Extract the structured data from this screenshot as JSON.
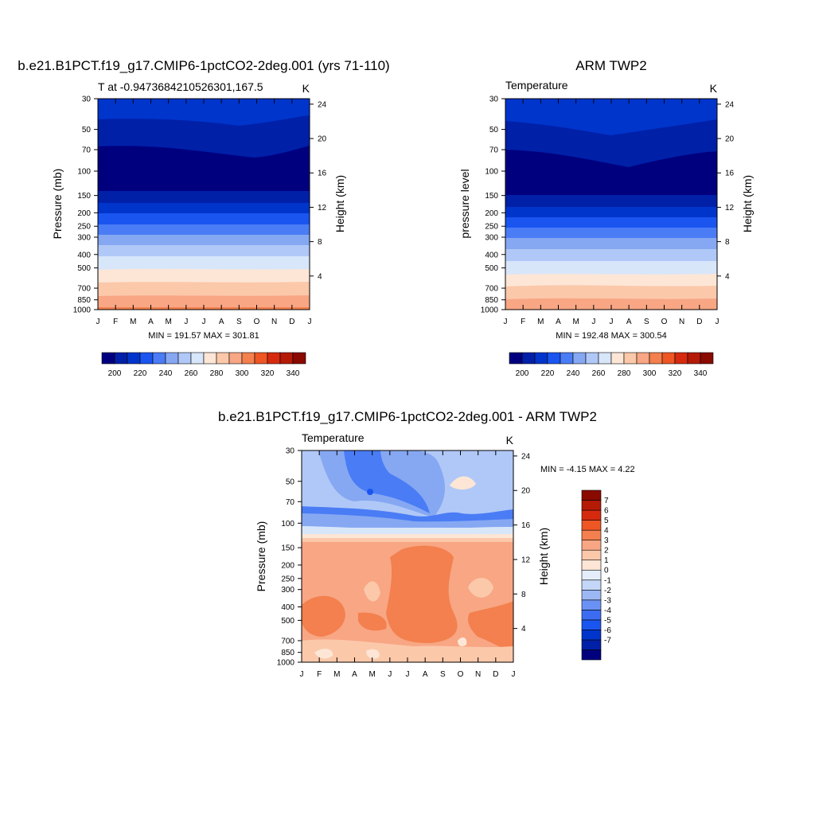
{
  "months": [
    "J",
    "F",
    "M",
    "A",
    "M",
    "J",
    "J",
    "A",
    "S",
    "O",
    "N",
    "D",
    "J"
  ],
  "pressure_ticks": [
    "30",
    "50",
    "70",
    "100",
    "150",
    "200",
    "250",
    "300",
    "400",
    "500",
    "700",
    "850",
    "1000"
  ],
  "height_ticks": [
    "24",
    "20",
    "16",
    "12",
    "8",
    "4"
  ],
  "panels": [
    {
      "id": "model",
      "title": "b.e21.B1PCT.f19_g17.CMIP6-1pctCO2-2deg.001 (yrs 71-110)",
      "left_label": "T at -0.9473684210526301,167.5",
      "units": "K",
      "ylabel": "Pressure (mb)",
      "y2label": "Height (km)",
      "stats": "MIN = 191.57 MAX = 301.81"
    },
    {
      "id": "obs",
      "title": "ARM TWP2",
      "left_label": "Temperature",
      "units": "K",
      "ylabel": "pressure level",
      "y2label": "Height (km)",
      "stats": "MIN = 192.48 MAX = 300.54"
    },
    {
      "id": "diff",
      "title": "b.e21.B1PCT.f19_g17.CMIP6-1pctCO2-2deg.001 - ARM TWP2",
      "left_label": "Temperature",
      "units": "K",
      "ylabel": "Pressure (mb)",
      "y2label": "Height (km)",
      "stats": "MIN =  -4.15 MAX =   4.22"
    }
  ],
  "colorbar_abs": {
    "labels": [
      "200",
      "220",
      "240",
      "260",
      "280",
      "300",
      "320",
      "340"
    ],
    "colors": [
      "#00007f",
      "#0020a8",
      "#0035cc",
      "#1a55f0",
      "#4a7cf5",
      "#86a8f2",
      "#b0c8f7",
      "#d8e6fa",
      "#fde6d6",
      "#fbc8aa",
      "#f8a684",
      "#f3804e",
      "#ee5624",
      "#d62a0e",
      "#b41a06",
      "#8a0a00"
    ]
  },
  "colorbar_diff": {
    "labels": [
      "7",
      "6",
      "5",
      "4",
      "3",
      "2",
      "1",
      "0",
      "-1",
      "-2",
      "-3",
      "-4",
      "-5",
      "-6",
      "-7"
    ],
    "colors": [
      "#00007f",
      "#0020a8",
      "#0035cc",
      "#1a55f0",
      "#3b6cf2",
      "#6a92f4",
      "#9bb8f5",
      "#c4d7f8",
      "#e4eefb",
      "#fde6d6",
      "#fbc8aa",
      "#f8a684",
      "#f3804e",
      "#ee5624",
      "#d62a0e",
      "#b41a06",
      "#8a0a00"
    ]
  },
  "chart_data": [
    {
      "type": "heatmap",
      "title": "b.e21.B1PCT.f19_g17.CMIP6-1pctCO2-2deg.001 (yrs 71-110)",
      "subtitle": "T at -0.9473684210526301,167.5",
      "units": "K",
      "xlabel": "",
      "ylabel": "Pressure (mb)",
      "y2label": "Height (km)",
      "x": [
        "J",
        "F",
        "M",
        "A",
        "M",
        "J",
        "J",
        "A",
        "S",
        "O",
        "N",
        "D",
        "J"
      ],
      "pressure_levels": [
        1000,
        850,
        700,
        500,
        400,
        300,
        250,
        200,
        150,
        100,
        70,
        50,
        30
      ],
      "temperature_profile_K": [
        300,
        292,
        283,
        268,
        257,
        242,
        233,
        222,
        208,
        195,
        194,
        202,
        212
      ],
      "min": 191.57,
      "max": 301.81
    },
    {
      "type": "heatmap",
      "title": "ARM TWP2",
      "subtitle": "Temperature",
      "units": "K",
      "ylabel": "pressure level",
      "y2label": "Height (km)",
      "x": [
        "J",
        "F",
        "M",
        "A",
        "M",
        "J",
        "J",
        "A",
        "S",
        "O",
        "N",
        "D",
        "J"
      ],
      "pressure_levels": [
        1000,
        850,
        700,
        500,
        400,
        300,
        250,
        200,
        150,
        100,
        70,
        50,
        30
      ],
      "temperature_profile_K": [
        299,
        290,
        281,
        266,
        255,
        240,
        231,
        220,
        206,
        194,
        193,
        201,
        211
      ],
      "min": 192.48,
      "max": 300.54
    },
    {
      "type": "heatmap",
      "title": "b.e21.B1PCT.f19_g17.CMIP6-1pctCO2-2deg.001 - ARM TWP2",
      "subtitle": "Temperature",
      "units": "K",
      "ylabel": "Pressure (mb)",
      "y2label": "Height (km)",
      "x": [
        "J",
        "F",
        "M",
        "A",
        "M",
        "J",
        "J",
        "A",
        "S",
        "O",
        "N",
        "D",
        "J"
      ],
      "pressure_levels": [
        1000,
        850,
        700,
        500,
        400,
        300,
        250,
        200,
        150,
        100,
        70,
        50,
        30
      ],
      "difference_profile_K": [
        1.5,
        2,
        2.5,
        3,
        2,
        1.5,
        2,
        2,
        2,
        -0.5,
        -3,
        -3,
        -1.5
      ],
      "min": -4.15,
      "max": 4.22
    }
  ]
}
